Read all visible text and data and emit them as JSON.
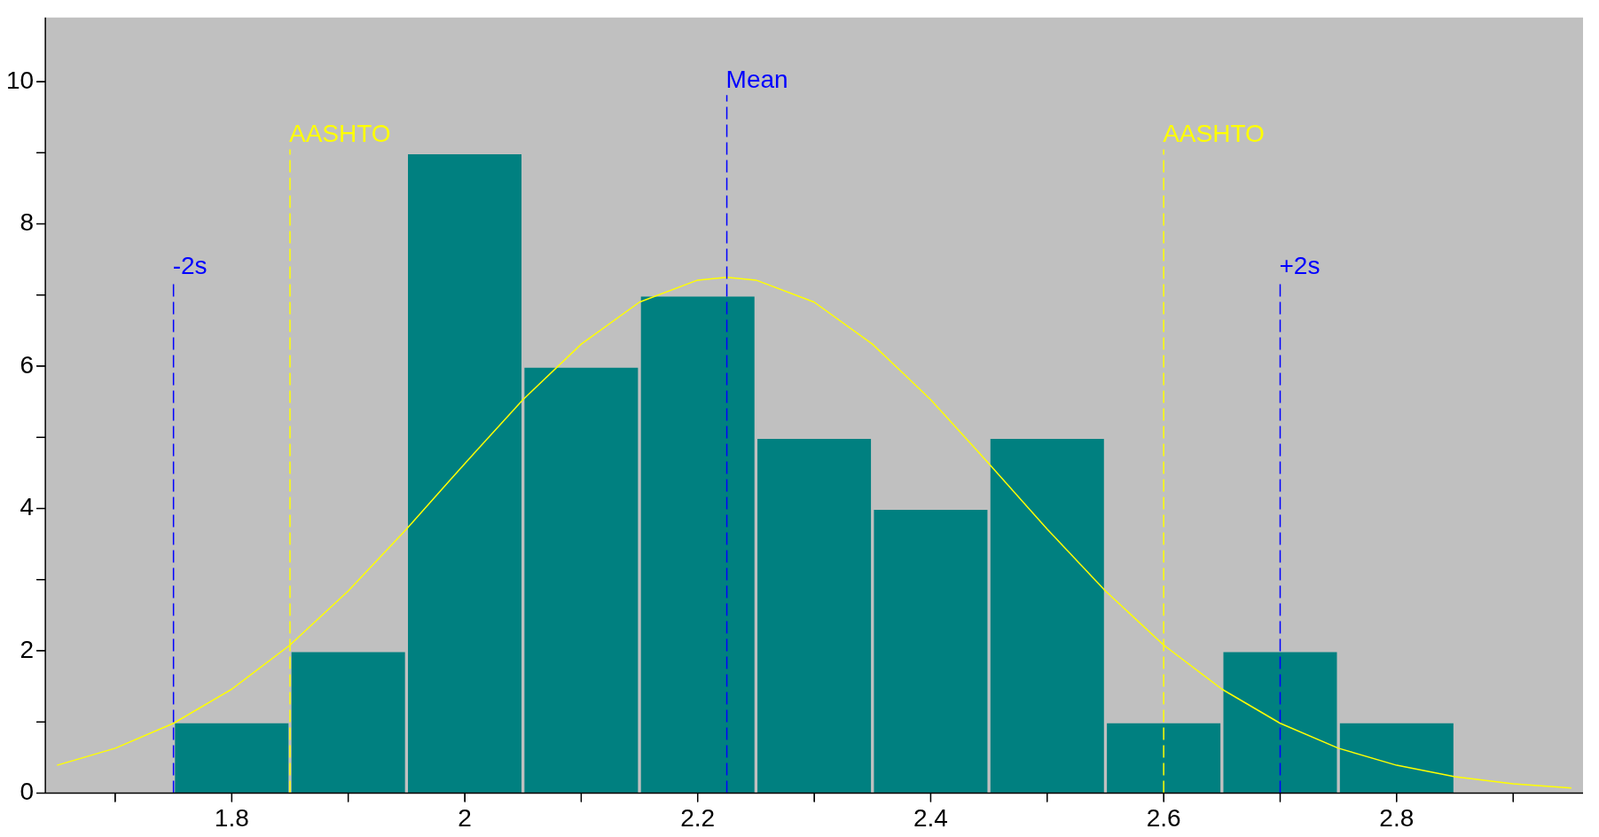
{
  "chart_data": {
    "type": "histogram",
    "bins": [
      1.75,
      1.85,
      1.95,
      2.05,
      2.15,
      2.25,
      2.35,
      2.45,
      2.55,
      2.65,
      2.75,
      2.85
    ],
    "values": [
      1,
      2,
      9,
      6,
      7,
      5,
      4,
      5,
      1,
      2,
      1
    ],
    "color": "#008080",
    "series": [
      {
        "type": "line",
        "color": "#ffff00",
        "x": [
          1.65,
          1.7,
          1.75,
          1.8,
          1.85,
          1.9,
          1.95,
          2.0,
          2.05,
          2.1,
          2.15,
          2.2,
          2.225,
          2.25,
          2.3,
          2.35,
          2.4,
          2.45,
          2.5,
          2.55,
          2.6,
          2.65,
          2.7,
          2.75,
          2.8,
          2.85,
          2.9,
          2.95
        ],
        "values": [
          0.39,
          0.63,
          0.98,
          1.46,
          2.08,
          2.84,
          3.71,
          4.63,
          5.53,
          6.31,
          6.9,
          7.21,
          7.25,
          7.21,
          6.9,
          6.31,
          5.53,
          4.63,
          3.71,
          2.84,
          2.08,
          1.46,
          0.98,
          0.63,
          0.39,
          0.23,
          0.13,
          0.07
        ]
      }
    ],
    "xlim": [
      1.64,
      2.96
    ],
    "xticks": [
      {
        "value": 1.7,
        "label": null
      },
      1.8,
      {
        "value": 1.9,
        "label": null
      },
      2,
      {
        "value": 2.1,
        "label": null
      },
      2.2,
      {
        "value": 2.3,
        "label": null
      },
      2.4,
      {
        "value": 2.5,
        "label": null
      },
      2.6,
      {
        "value": 2.7,
        "label": null
      },
      2.8,
      {
        "value": 2.9,
        "label": null
      }
    ],
    "ylim": [
      0,
      10.9
    ],
    "yticks": [
      0,
      {
        "value": 1,
        "label": null
      },
      2,
      {
        "value": 3,
        "label": null
      },
      4,
      {
        "value": 5,
        "label": null
      },
      6,
      {
        "value": 7,
        "label": null
      },
      8,
      {
        "value": 9,
        "label": null
      },
      10
    ],
    "ref_lines": [
      {
        "axis": "x",
        "value": 1.75,
        "label": "-2s",
        "color": "#0000ff",
        "line_style": "dashed"
      },
      {
        "axis": "x",
        "value": 1.85,
        "label": "AASHTO",
        "color": "#ffff00",
        "line_style": "dashed"
      },
      {
        "axis": "x",
        "value": 2.225,
        "label": "Mean",
        "color": "#0000ff",
        "line_style": "dashed"
      },
      {
        "axis": "x",
        "value": 2.6,
        "label": "AASHTO",
        "color": "#ffff00",
        "line_style": "dashed"
      },
      {
        "axis": "x",
        "value": 2.7,
        "label": "+2s",
        "color": "#0000ff",
        "line_style": "dashed"
      }
    ]
  }
}
